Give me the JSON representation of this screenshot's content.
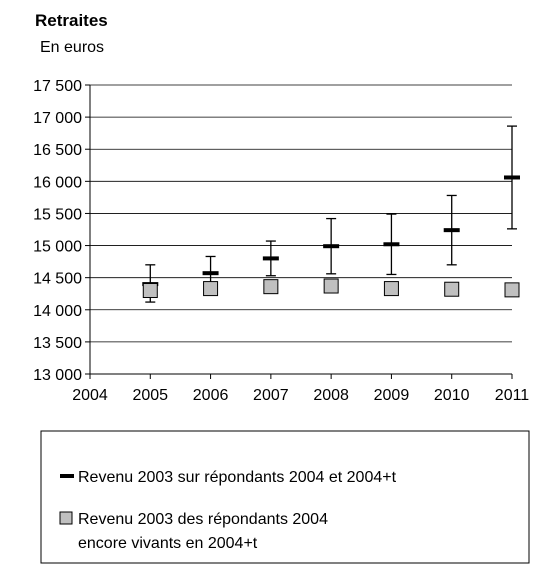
{
  "chart_data": {
    "type": "scatter",
    "title": "Retraites",
    "subtitle": "En euros",
    "xlabel": "",
    "ylabel": "",
    "xlim": [
      2004,
      2011
    ],
    "ylim": [
      13000,
      17500
    ],
    "grid": true,
    "legend_position": "bottom",
    "x_ticks": [
      "2004",
      "2005",
      "2006",
      "2007",
      "2008",
      "2009",
      "2010",
      "2011"
    ],
    "y_ticks": [
      "13 000",
      "13 500",
      "14 000",
      "14 500",
      "15 000",
      "15 500",
      "16 000",
      "16 500",
      "17 000",
      "17 500"
    ],
    "y_tick_values": [
      13000,
      13500,
      14000,
      14500,
      15000,
      15500,
      16000,
      16500,
      17000,
      17500
    ],
    "series": [
      {
        "name": "Revenu 2003 sur répondants 2004 et 2004+t",
        "marker": "dash-with-error-bar",
        "color": "#000000",
        "x": [
          2005,
          2006,
          2007,
          2008,
          2009,
          2010,
          2011
        ],
        "values": [
          14400,
          14570,
          14800,
          14990,
          15020,
          15240,
          16060
        ],
        "lower": [
          14120,
          14310,
          14530,
          14560,
          14550,
          14700,
          15260
        ],
        "upper": [
          14700,
          14830,
          15070,
          15420,
          15490,
          15780,
          16860
        ]
      },
      {
        "name": "Revenu 2003 des répondants 2004 encore vivants en 2004+t",
        "name_lines": [
          "Revenu 2003 des répondants 2004",
          "encore vivants en 2004+t"
        ],
        "marker": "square",
        "color": "#c0c0c0",
        "x": [
          2005,
          2006,
          2007,
          2008,
          2009,
          2010,
          2011
        ],
        "values": [
          14300,
          14330,
          14360,
          14370,
          14330,
          14320,
          14310
        ]
      }
    ]
  }
}
